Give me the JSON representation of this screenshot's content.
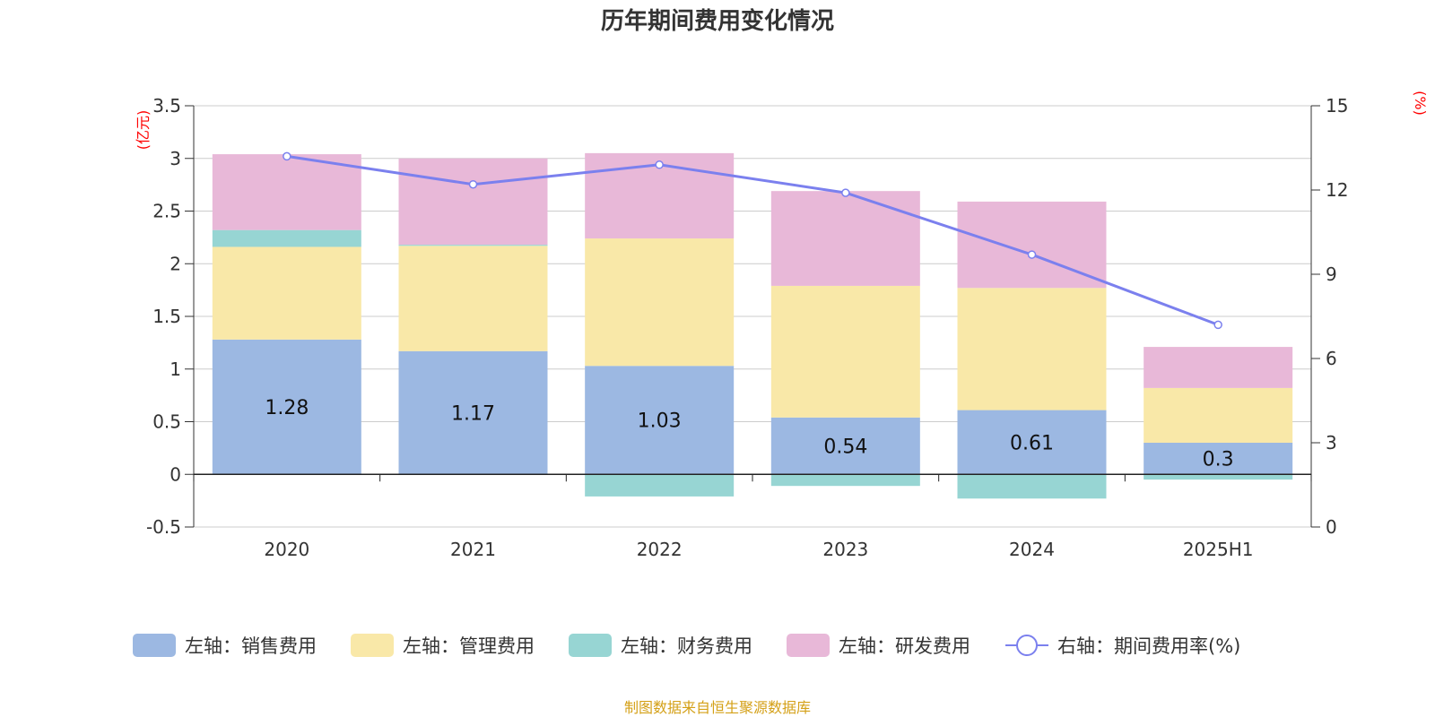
{
  "chart_data": {
    "type": "bar",
    "title": "历年期间费用变化情况",
    "categories": [
      "2020",
      "2021",
      "2022",
      "2023",
      "2024",
      "2025H1"
    ],
    "left_axis": {
      "unit": "(亿元)",
      "range": [
        -0.5,
        3.5
      ],
      "ticks": [
        "-0.5",
        "0",
        "0.5",
        "1",
        "1.5",
        "2",
        "2.5",
        "3",
        "3.5"
      ]
    },
    "right_axis": {
      "unit": "(%)",
      "range": [
        0,
        15
      ],
      "ticks": [
        "0",
        "3",
        "6",
        "9",
        "12",
        "15"
      ]
    },
    "stacked": true,
    "series": [
      {
        "name": "左轴：销售费用",
        "axis": "left",
        "type": "bar",
        "color": "#9cb8e2",
        "values": [
          1.28,
          1.17,
          1.03,
          0.54,
          0.61,
          0.3
        ],
        "data_labels": [
          "1.28",
          "1.17",
          "1.03",
          "0.54",
          "0.61",
          "0.3"
        ]
      },
      {
        "name": "左轴：管理费用",
        "axis": "left",
        "type": "bar",
        "color": "#f9e8a8",
        "values": [
          0.88,
          1.0,
          1.21,
          1.25,
          1.16,
          0.52
        ]
      },
      {
        "name": "左轴：财务费用",
        "axis": "left",
        "type": "bar",
        "color": "#97d5d3",
        "values": [
          0.16,
          0.01,
          -0.21,
          -0.11,
          -0.23,
          -0.05
        ]
      },
      {
        "name": "左轴：研发费用",
        "axis": "left",
        "type": "bar",
        "color": "#e8b8d8",
        "values": [
          0.72,
          0.82,
          0.81,
          0.9,
          0.82,
          0.39
        ]
      },
      {
        "name": "右轴：期间费用率(%)",
        "axis": "right",
        "type": "line",
        "color": "#7b80ee",
        "values": [
          13.2,
          12.2,
          12.9,
          11.9,
          9.7,
          7.2
        ]
      }
    ],
    "grid": true,
    "legend_position": "bottom"
  },
  "source_note": "制图数据来自恒生聚源数据库"
}
